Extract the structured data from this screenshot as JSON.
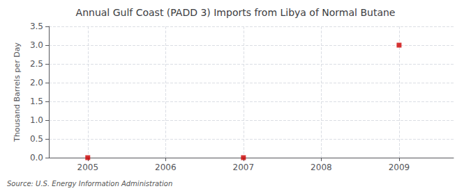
{
  "chart_data": {
    "type": "scatter",
    "title": "Annual Gulf Coast (PADD 3) Imports from Libya of Normal Butane",
    "ylabel": "Thousand Barrels per Day",
    "source": "Source: U.S. Energy Information Administration",
    "x": [
      2005,
      2007,
      2009
    ],
    "values": [
      0.0,
      0.0,
      3.0
    ],
    "color": "#cc0000",
    "marker": "square",
    "xlim": [
      2004.5,
      2009.7
    ],
    "xticks": [
      2005,
      2006,
      2007,
      2008,
      2009
    ],
    "ylim": [
      0.0,
      3.5
    ],
    "yticks": [
      {
        "value": 0.0,
        "label": "0.0"
      },
      {
        "value": 0.5,
        "label": "0.5"
      },
      {
        "value": 1.0,
        "label": "1.0"
      },
      {
        "value": 1.5,
        "label": "1.5"
      },
      {
        "value": 2.0,
        "label": "2.0"
      },
      {
        "value": 2.5,
        "label": "2.5"
      },
      {
        "value": 3.0,
        "label": "3.0"
      },
      {
        "value": 3.5,
        "label": "3.5"
      }
    ],
    "grid": true
  }
}
